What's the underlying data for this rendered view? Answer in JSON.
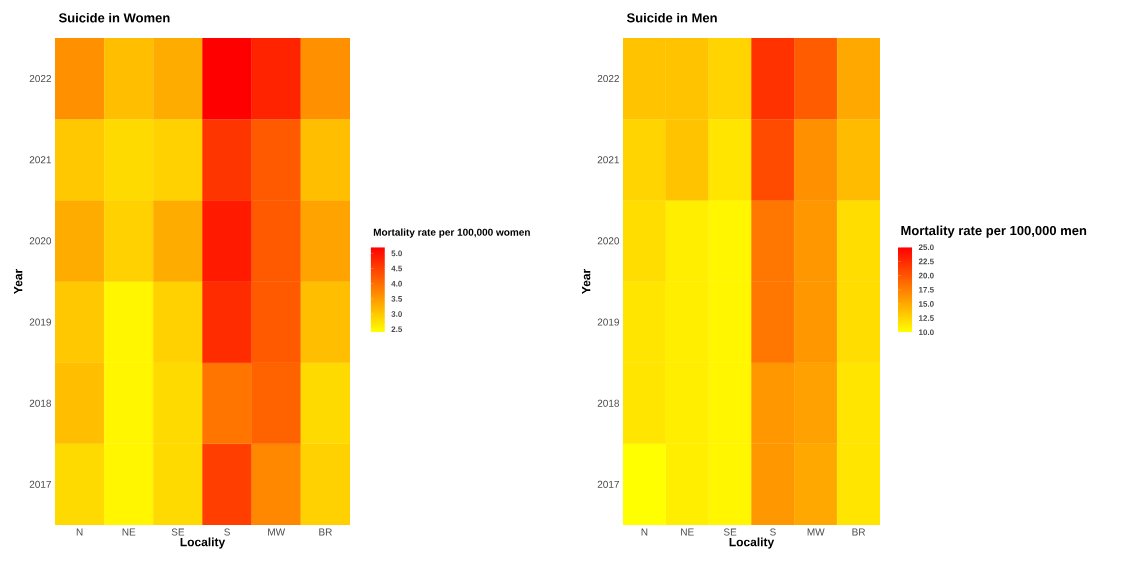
{
  "chart_data": [
    {
      "type": "heatmap",
      "title": "Suicide in Women",
      "xlabel": "Locality",
      "ylabel": "Year",
      "clabel": "Mortality rate per 100,000 women",
      "categories": [
        "N",
        "NE",
        "SE",
        "S",
        "MW",
        "BR"
      ],
      "y_categories": [
        "2022",
        "2021",
        "2020",
        "2019",
        "2018",
        "2017"
      ],
      "cells": [
        [
          3.6,
          3.1,
          3.3,
          5.2,
          4.8,
          3.6
        ],
        [
          3.0,
          2.8,
          2.9,
          4.6,
          4.2,
          3.1
        ],
        [
          3.3,
          2.9,
          3.3,
          4.9,
          4.2,
          3.4
        ],
        [
          3.0,
          2.5,
          2.9,
          4.7,
          4.2,
          3.1
        ],
        [
          3.1,
          2.5,
          2.8,
          3.9,
          4.1,
          2.8
        ],
        [
          2.8,
          2.5,
          2.8,
          4.5,
          3.7,
          2.9
        ]
      ],
      "clim": [
        2.4,
        5.2
      ],
      "cticks": [
        {
          "value": 2.5,
          "label": "2.5"
        },
        {
          "value": 3,
          "label": "3.0"
        },
        {
          "value": 3.5,
          "label": "3.5"
        },
        {
          "value": 4,
          "label": "4.0"
        },
        {
          "value": 4.5,
          "label": "4.5"
        },
        {
          "value": 5,
          "label": "5.0"
        }
      ]
    },
    {
      "type": "heatmap",
      "title": "Suicide in Men",
      "xlabel": "Locality",
      "ylabel": "Year",
      "clabel": "Mortality rate per 100,000 men",
      "categories": [
        "N",
        "NE",
        "SE",
        "S",
        "MW",
        "BR"
      ],
      "y_categories": [
        "2022",
        "2021",
        "2020",
        "2019",
        "2018",
        "2017"
      ],
      "cells": [
        [
          13.5,
          13.5,
          12.5,
          22,
          19.5,
          15
        ],
        [
          12.5,
          13.5,
          11.5,
          20.5,
          16.5,
          14
        ],
        [
          12,
          11,
          10.5,
          18,
          16,
          12
        ],
        [
          11.5,
          11,
          10.5,
          18,
          16,
          12
        ],
        [
          11.5,
          11,
          10.5,
          16,
          15.5,
          11.5
        ],
        [
          10,
          11,
          10.5,
          16,
          15,
          11.5
        ]
      ],
      "clim": [
        10,
        25
      ],
      "cticks": [
        {
          "value": 10,
          "label": "10.0"
        },
        {
          "value": 12.5,
          "label": "12.5"
        },
        {
          "value": 15,
          "label": "15.0"
        },
        {
          "value": 17.5,
          "label": "17.5"
        },
        {
          "value": 20,
          "label": "20.0"
        },
        {
          "value": 22.5,
          "label": "22.5"
        },
        {
          "value": 25,
          "label": "25.0"
        }
      ]
    }
  ]
}
